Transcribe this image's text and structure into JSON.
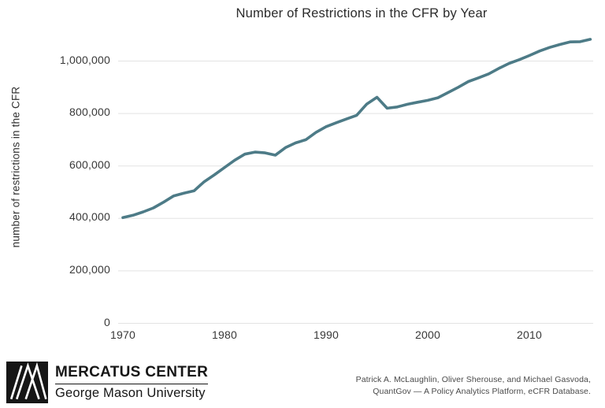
{
  "chart": {
    "title": "Number of Restrictions in the CFR by Year",
    "y_axis_label": "number of restrictions in the CFR"
  },
  "chart_data": {
    "type": "line",
    "title": "Number of Restrictions in the CFR by Year",
    "xlabel": "",
    "ylabel": "number of restrictions in the CFR",
    "series_name": "number of restrictions in the CFR",
    "x": [
      1970,
      1971,
      1972,
      1973,
      1974,
      1975,
      1976,
      1977,
      1978,
      1979,
      1980,
      1981,
      1982,
      1983,
      1984,
      1985,
      1986,
      1987,
      1988,
      1989,
      1990,
      1991,
      1992,
      1993,
      1994,
      1995,
      1996,
      1997,
      1998,
      1999,
      2000,
      2001,
      2002,
      2003,
      2004,
      2005,
      2006,
      2007,
      2008,
      2009,
      2010,
      2011,
      2012,
      2013,
      2014,
      2015,
      2016
    ],
    "values": [
      403000,
      412000,
      425000,
      440000,
      462000,
      486000,
      496000,
      505000,
      540000,
      566000,
      594000,
      622000,
      645000,
      653000,
      650000,
      641000,
      670000,
      688000,
      700000,
      728000,
      750000,
      765000,
      779000,
      793000,
      836000,
      862000,
      820000,
      825000,
      835000,
      843000,
      850000,
      860000,
      880000,
      900000,
      922000,
      936000,
      951000,
      972000,
      991000,
      1005000,
      1021000,
      1038000,
      1052000,
      1063000,
      1073000,
      1074000,
      1083000
    ],
    "xticks": [
      1970,
      1980,
      1990,
      2000,
      2010
    ],
    "yticks": [
      0,
      200000,
      400000,
      600000,
      800000,
      1000000
    ],
    "ytick_labels": [
      "0",
      "200,000",
      "400,000",
      "600,000",
      "800,000",
      "1,000,000"
    ],
    "xlim": [
      1969.5,
      2016.5
    ],
    "ylim": [
      0,
      1100000
    ],
    "grid": "horizontal-only",
    "legend": "none",
    "line_color": "#4d7b87"
  },
  "colors": {
    "line": "#4d7b87",
    "grid": "#e3e3e3",
    "title_text": "#2b2b2b",
    "tick_text": "#383838",
    "footer_text": "#4a4a4a",
    "logo_black": "#161616"
  },
  "footer": {
    "logo": {
      "icon": "mercatus-m-logo",
      "org_name": "MERCATUS CENTER",
      "org_subtitle": "George Mason University"
    },
    "attribution_line1": "Patrick A. McLaughlin, Oliver Sherouse, and Michael Gasvoda,",
    "attribution_line2": "QuantGov — A Policy Analytics Platform, eCFR Database."
  }
}
